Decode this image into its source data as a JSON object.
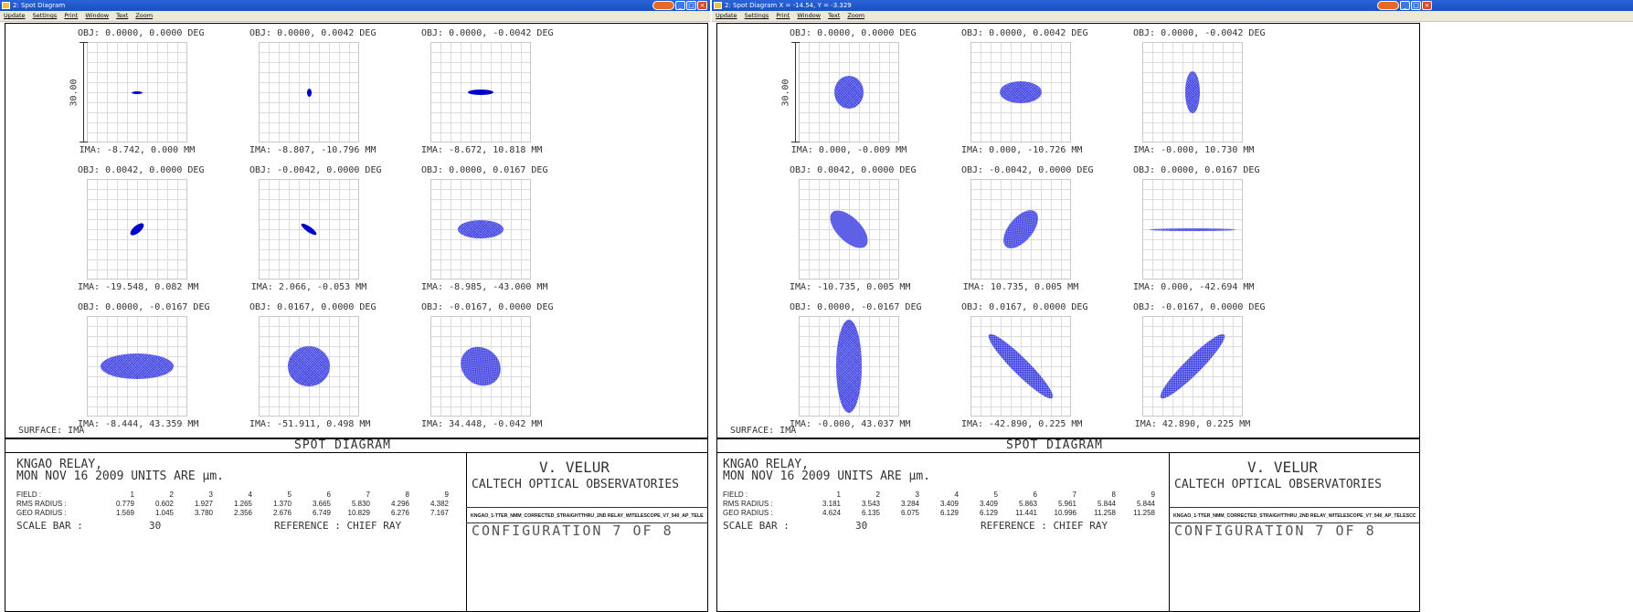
{
  "windows": [
    {
      "title": "2: Spot Diagram",
      "menu": [
        "Update",
        "Settings",
        "Print",
        "Window",
        "Text",
        "Zoom"
      ],
      "scale_label": "30.00",
      "surface_label": "SURFACE: IMA",
      "plots": [
        {
          "obj": "OBJ: 0.0000, 0.0000 DEG",
          "ima": "IMA: -8.742, 0.000 MM",
          "spot": {
            "w": 12,
            "h": 3,
            "rot": 0,
            "style": "solid"
          }
        },
        {
          "obj": "OBJ: 0.0000, 0.0042 DEG",
          "ima": "IMA: -8.807, -10.796 MM",
          "spot": {
            "w": 5,
            "h": 9,
            "rot": 0,
            "style": "solid"
          }
        },
        {
          "obj": "OBJ: 0.0000, -0.0042 DEG",
          "ima": "IMA: -8.672, 10.818 MM",
          "spot": {
            "w": 28,
            "h": 6,
            "rot": 0,
            "style": "solid"
          }
        },
        {
          "obj": "OBJ: 0.0042, 0.0000 DEG",
          "ima": "IMA: -19.548, 0.082 MM",
          "spot": {
            "w": 18,
            "h": 8,
            "rot": -40,
            "style": "solid"
          }
        },
        {
          "obj": "OBJ: -0.0042, 0.0000 DEG",
          "ima": "IMA: 2.066, -0.053 MM",
          "spot": {
            "w": 20,
            "h": 6,
            "rot": 35,
            "style": "solid"
          }
        },
        {
          "obj": "OBJ: 0.0000, 0.0167 DEG",
          "ima": "IMA: -8.985, -43.000 MM",
          "spot": {
            "w": 50,
            "h": 20,
            "rot": 0,
            "style": "mesh"
          }
        },
        {
          "obj": "OBJ: 0.0000, -0.0167 DEG",
          "ima": "IMA: -8.444, 43.359 MM",
          "spot": {
            "w": 80,
            "h": 28,
            "rot": 0,
            "style": "mesh"
          }
        },
        {
          "obj": "OBJ: 0.0167, 0.0000 DEG",
          "ima": "IMA: -51.911, 0.498 MM",
          "spot": {
            "w": 46,
            "h": 44,
            "rot": 0,
            "style": "mesh"
          }
        },
        {
          "obj": "OBJ: -0.0167, 0.0000 DEG",
          "ima": "IMA: 34.448, -0.042 MM",
          "spot": {
            "w": 46,
            "h": 40,
            "rot": 40,
            "style": "mesh"
          }
        }
      ],
      "banner": "SPOT DIAGRAM",
      "info": {
        "line1": "KNGAO RELAY,",
        "line2": "MON NOV 16 2009   UNITS ARE µm.",
        "field_label": "FIELD     :",
        "fields": [
          "1",
          "2",
          "3",
          "4",
          "5",
          "6",
          "7",
          "8",
          "9"
        ],
        "rms_label": "RMS RADIUS :",
        "rms": [
          "0.779",
          "0.602",
          "1.927",
          "1.265",
          "1.370",
          "3.665",
          "5.830",
          "4.296",
          "4.382"
        ],
        "geo_label": "GEO RADIUS :",
        "geo": [
          "1.569",
          "1.045",
          "3.780",
          "2.356",
          "2.676",
          "6.749",
          "10.829",
          "6.276",
          "7.167"
        ],
        "scale_label": "SCALE BAR   :",
        "scale_value": "30",
        "reference": "REFERENCE   : CHIEF RAY",
        "author": "V. VELUR",
        "org": "CALTECH OPTICAL OBSERVATORIES",
        "filepath": "KNGAO_1-TTER_NMM_CORRECTED_STRAIGHTTHRU_2ND RELAY_WITELESCOPE_V7_540_AP_TELESCOPE_X_Y_DECENTER_32_ZMX",
        "config": "CONFIGURATION 7 OF 8"
      }
    },
    {
      "title": "2: Spot Diagram X = -14.54, Y = -3.329",
      "menu": [
        "Update",
        "Settings",
        "Print",
        "Window",
        "Text",
        "Zoom"
      ],
      "scale_label": "30.00",
      "surface_label": "SURFACE: IMA",
      "plots": [
        {
          "obj": "OBJ: 0.0000, 0.0000 DEG",
          "ima": "IMA: 0.000, -0.009 MM",
          "spot": {
            "w": 32,
            "h": 36,
            "rot": 0,
            "style": "mesh"
          }
        },
        {
          "obj": "OBJ: 0.0000, 0.0042 DEG",
          "ima": "IMA: 0.000, -10.726 MM",
          "spot": {
            "w": 46,
            "h": 24,
            "rot": 0,
            "style": "mesh"
          }
        },
        {
          "obj": "OBJ: 0.0000, -0.0042 DEG",
          "ima": "IMA: -0.000, 10.730 MM",
          "spot": {
            "w": 16,
            "h": 46,
            "rot": 0,
            "style": "mesh"
          }
        },
        {
          "obj": "OBJ: 0.0042, 0.0000 DEG",
          "ima": "IMA: -10.735, 0.005 MM",
          "spot": {
            "w": 52,
            "h": 26,
            "rot": 45,
            "style": "mesh"
          }
        },
        {
          "obj": "OBJ: -0.0042, 0.0000 DEG",
          "ima": "IMA: 10.735, 0.005 MM",
          "spot": {
            "w": 50,
            "h": 26,
            "rot": -50,
            "style": "mesh"
          }
        },
        {
          "obj": "OBJ: 0.0000, 0.0167 DEG",
          "ima": "IMA: 0.000, -42.694 MM",
          "spot": {
            "w": 94,
            "h": 3,
            "rot": 0,
            "style": "mesh"
          }
        },
        {
          "obj": "OBJ: 0.0000, -0.0167 DEG",
          "ima": "IMA: -0.000, 43.037 MM",
          "spot": {
            "w": 28,
            "h": 102,
            "rot": 0,
            "style": "mesh"
          }
        },
        {
          "obj": "OBJ: 0.0167, 0.0000 DEG",
          "ima": "IMA: -42.890, 0.225 MM",
          "spot": {
            "w": 98,
            "h": 18,
            "rot": 45,
            "style": "mesh"
          }
        },
        {
          "obj": "OBJ: -0.0167, 0.0000 DEG",
          "ima": "IMA: 42.890, 0.225 MM",
          "spot": {
            "w": 98,
            "h": 18,
            "rot": -45,
            "style": "mesh"
          }
        }
      ],
      "banner": "SPOT DIAGRAM",
      "info": {
        "line1": "KNGAO RELAY,",
        "line2": "MON NOV 16 2009   UNITS ARE µm.",
        "field_label": "FIELD     :",
        "fields": [
          "1",
          "2",
          "3",
          "4",
          "5",
          "6",
          "7",
          "8",
          "9"
        ],
        "rms_label": "RMS RADIUS :",
        "rms": [
          "3.181",
          "3.543",
          "3.284",
          "3.409",
          "3.409",
          "5.863",
          "5.961",
          "5.844",
          "5.844"
        ],
        "geo_label": "GEO RADIUS :",
        "geo": [
          "4.624",
          "6.135",
          "6.075",
          "6.129",
          "6.129",
          "11.441",
          "10.996",
          "11.258",
          "11.258"
        ],
        "scale_label": "SCALE BAR   :",
        "scale_value": "30",
        "reference": "REFERENCE   : CHIEF RAY",
        "author": "V. VELUR",
        "org": "CALTECH OPTICAL OBSERVATORIES",
        "filepath": "KNGAO_1-TTER_NMM_CORRECTED_STRAIGHTTHRU_2ND RELAY_WITELESCOPE_V7_540_AP_TELESCOPE_X_Y_DECENTER_32_ZMX",
        "config": "CONFIGURATION 7 OF 8"
      }
    }
  ],
  "colors": {
    "spot_solid": "#0000cc",
    "spot_mesh": "#8f95f0",
    "titlebar": "#1a4fc4",
    "menubar": "#ece9d8"
  }
}
